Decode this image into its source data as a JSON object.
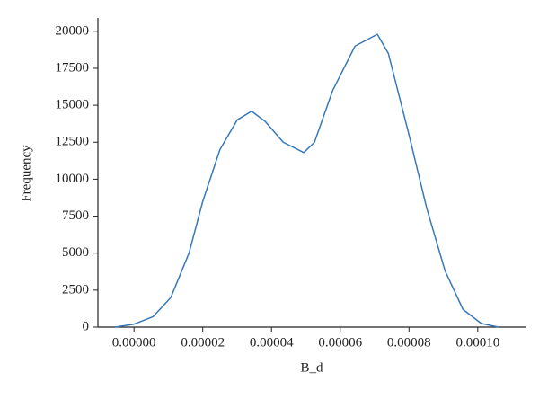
{
  "chart_data": {
    "type": "line",
    "x_label": "B_d",
    "y_label": "Frequency",
    "x": [
      -5.5e-06,
      0,
      5.5e-06,
      1.07e-05,
      1.6e-05,
      2e-05,
      2.5e-05,
      3e-05,
      3.42e-05,
      3.82e-05,
      4.34e-05,
      4.94e-05,
      5.25e-05,
      5.78e-05,
      6.43e-05,
      7.08e-05,
      7.4e-05,
      8e-05,
      8.52e-05,
      9.05e-05,
      9.57e-05,
      0.000101,
      0.000106
    ],
    "series": [
      {
        "color": "#3778b8",
        "values": [
          0,
          200,
          700,
          2000,
          5000,
          8500,
          12000,
          14000,
          14600,
          13900,
          12500,
          11800,
          12500,
          16000,
          19000,
          19800,
          18500,
          13000,
          8000,
          3800,
          1200,
          250,
          0
        ]
      }
    ],
    "xlim": [
      -1.05e-05,
      0.0001139
    ],
    "ylim": [
      0,
      20900
    ],
    "xticks": [
      {
        "value": 0,
        "label": "0.00000"
      },
      2e-05,
      4e-05,
      6e-05,
      8e-05,
      {
        "value": 0.0001,
        "label": "0.00010"
      }
    ],
    "yticks": [
      0,
      2500,
      5000,
      7500,
      10000,
      12500,
      15000,
      17500,
      20000
    ]
  }
}
